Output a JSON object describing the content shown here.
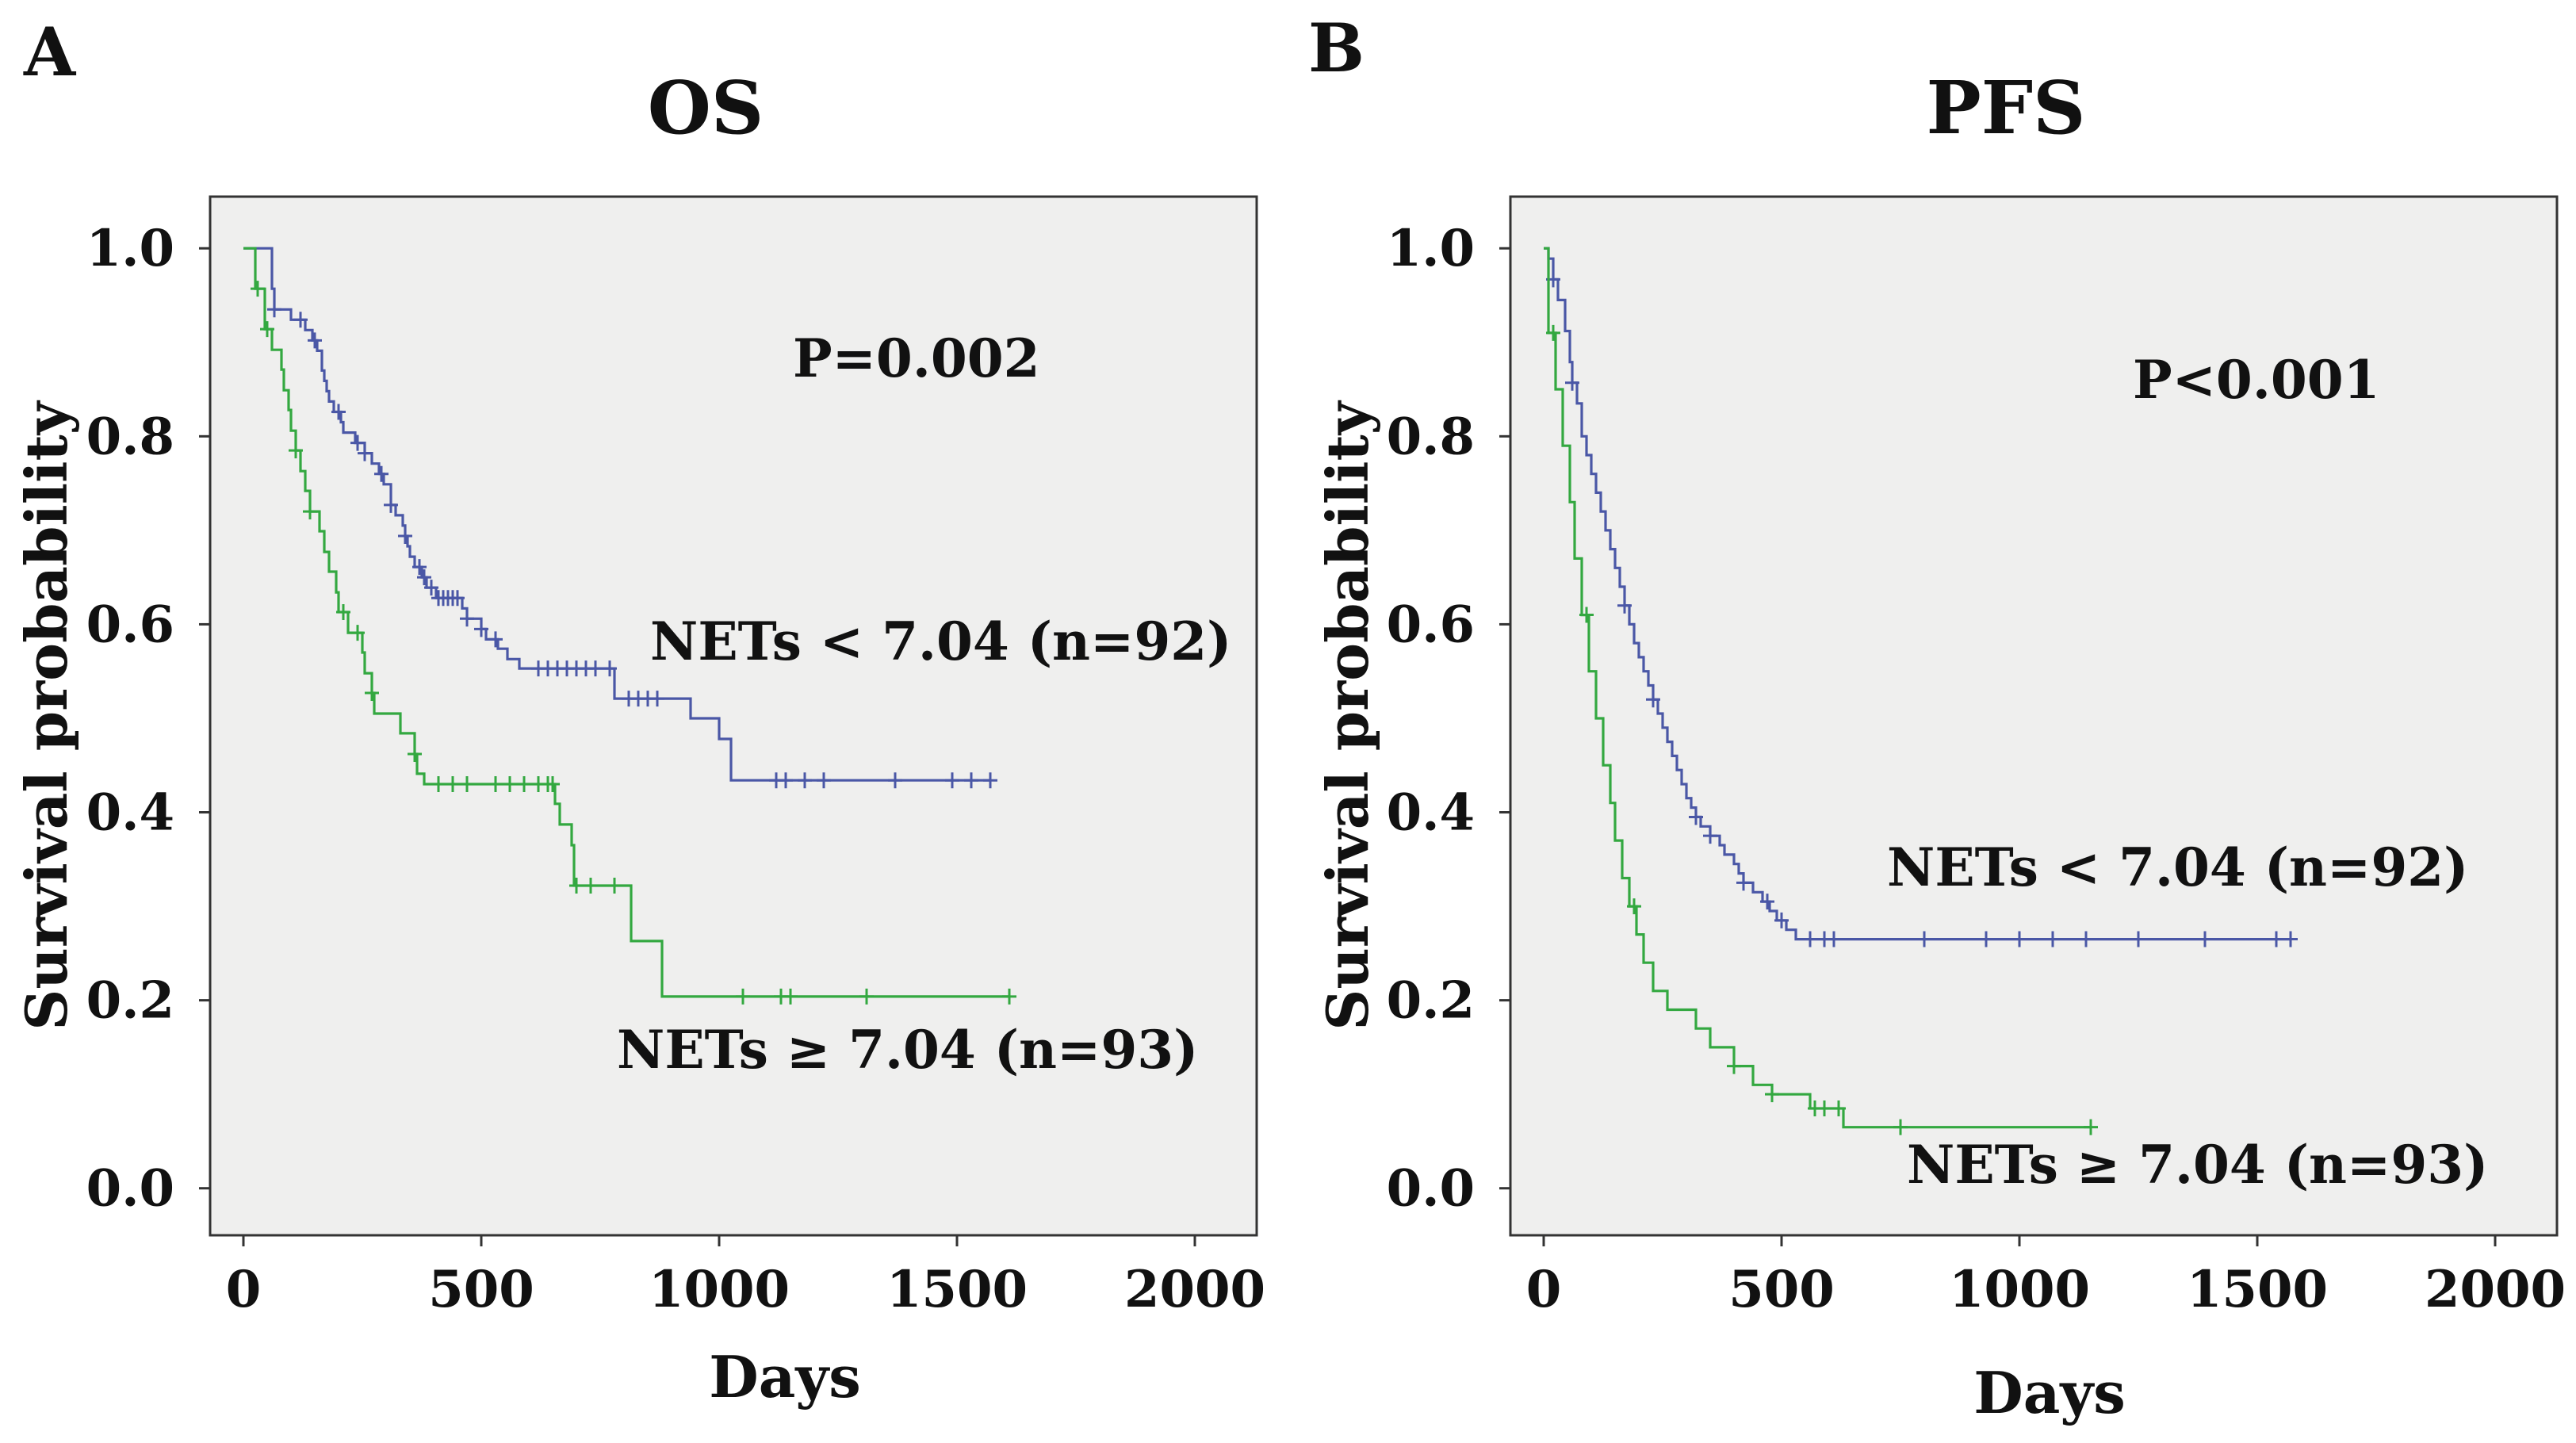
{
  "chart_data": [
    {
      "type": "line",
      "panel_label": "A",
      "title": "OS",
      "xlabel": "Days",
      "ylabel": "Survival probability",
      "xlim": [
        -70,
        2130
      ],
      "ylim": [
        -0.05,
        1.055
      ],
      "xticks": [
        0,
        500,
        1000,
        1500,
        2000
      ],
      "yticks": [
        0.0,
        0.2,
        0.4,
        0.6,
        0.8,
        1.0
      ],
      "annotation": "P=0.002",
      "series": [
        {
          "name": "NETs < 7.04 (n=92)",
          "color": "#4a57a6",
          "steps": [
            [
              0,
              1.0
            ],
            [
              55,
              1.0
            ],
            [
              60,
              0.957
            ],
            [
              65,
              0.935
            ],
            [
              100,
              0.924
            ],
            [
              130,
              0.913
            ],
            [
              145,
              0.902
            ],
            [
              155,
              0.891
            ],
            [
              165,
              0.87
            ],
            [
              170,
              0.859
            ],
            [
              175,
              0.848
            ],
            [
              180,
              0.837
            ],
            [
              190,
              0.826
            ],
            [
              205,
              0.815
            ],
            [
              210,
              0.804
            ],
            [
              235,
              0.793
            ],
            [
              255,
              0.782
            ],
            [
              270,
              0.771
            ],
            [
              285,
              0.76
            ],
            [
              295,
              0.749
            ],
            [
              310,
              0.727
            ],
            [
              320,
              0.716
            ],
            [
              335,
              0.705
            ],
            [
              340,
              0.694
            ],
            [
              345,
              0.683
            ],
            [
              350,
              0.672
            ],
            [
              360,
              0.661
            ],
            [
              375,
              0.65
            ],
            [
              385,
              0.639
            ],
            [
              405,
              0.628
            ],
            [
              460,
              0.617
            ],
            [
              470,
              0.606
            ],
            [
              500,
              0.595
            ],
            [
              510,
              0.584
            ],
            [
              535,
              0.574
            ],
            [
              555,
              0.563
            ],
            [
              580,
              0.553
            ],
            [
              780,
              0.521
            ],
            [
              940,
              0.5
            ],
            [
              1000,
              0.478
            ],
            [
              1025,
              0.434
            ]
          ],
          "end_x": 1570,
          "censor_x": [
            65,
            120,
            150,
            200,
            240,
            255,
            290,
            310,
            340,
            370,
            380,
            395,
            410,
            420,
            430,
            440,
            450,
            470,
            500,
            530,
            620,
            640,
            660,
            680,
            700,
            720,
            740,
            770,
            810,
            830,
            850,
            870,
            1120,
            1140,
            1180,
            1220,
            1370,
            1490,
            1530,
            1570
          ]
        },
        {
          "name": "NETs ≥ 7.04 (n=93)",
          "color": "#33a840",
          "steps": [
            [
              0,
              1.0
            ],
            [
              25,
              0.957
            ],
            [
              45,
              0.914
            ],
            [
              60,
              0.892
            ],
            [
              80,
              0.871
            ],
            [
              85,
              0.849
            ],
            [
              95,
              0.828
            ],
            [
              100,
              0.806
            ],
            [
              110,
              0.785
            ],
            [
              120,
              0.763
            ],
            [
              130,
              0.742
            ],
            [
              140,
              0.72
            ],
            [
              160,
              0.699
            ],
            [
              170,
              0.677
            ],
            [
              180,
              0.656
            ],
            [
              195,
              0.634
            ],
            [
              200,
              0.613
            ],
            [
              220,
              0.591
            ],
            [
              250,
              0.57
            ],
            [
              255,
              0.548
            ],
            [
              270,
              0.527
            ],
            [
              275,
              0.505
            ],
            [
              330,
              0.484
            ],
            [
              360,
              0.462
            ],
            [
              365,
              0.441
            ],
            [
              380,
              0.43
            ],
            [
              655,
              0.409
            ],
            [
              665,
              0.387
            ],
            [
              690,
              0.365
            ],
            [
              695,
              0.322
            ],
            [
              815,
              0.263
            ],
            [
              880,
              0.204
            ]
          ],
          "end_x": 1610,
          "censor_x": [
            30,
            50,
            110,
            140,
            210,
            240,
            270,
            360,
            410,
            440,
            470,
            530,
            560,
            590,
            620,
            640,
            650,
            700,
            730,
            780,
            1050,
            1130,
            1150,
            1310,
            1610
          ]
        }
      ],
      "series_labels": [
        "NETs < 7.04 (n=92)",
        "NETs ≥ 7.04 (n=93)"
      ]
    },
    {
      "type": "line",
      "panel_label": "B",
      "title": "PFS",
      "xlabel": "Days",
      "ylabel": "Survival probability",
      "xlim": [
        -70,
        2130
      ],
      "ylim": [
        -0.05,
        1.055
      ],
      "xticks": [
        0,
        500,
        1000,
        1500,
        2000
      ],
      "yticks": [
        0.0,
        0.2,
        0.4,
        0.6,
        0.8,
        1.0
      ],
      "annotation": "P<0.001",
      "series": [
        {
          "name": "NETs < 7.04 (n=92)",
          "color": "#4a57a6",
          "steps": [
            [
              0,
              1.0
            ],
            [
              10,
              0.989
            ],
            [
              20,
              0.967
            ],
            [
              30,
              0.945
            ],
            [
              45,
              0.912
            ],
            [
              55,
              0.879
            ],
            [
              60,
              0.857
            ],
            [
              70,
              0.835
            ],
            [
              80,
              0.8
            ],
            [
              90,
              0.78
            ],
            [
              100,
              0.76
            ],
            [
              110,
              0.74
            ],
            [
              120,
              0.72
            ],
            [
              130,
              0.7
            ],
            [
              140,
              0.68
            ],
            [
              150,
              0.66
            ],
            [
              160,
              0.64
            ],
            [
              170,
              0.62
            ],
            [
              180,
              0.6
            ],
            [
              190,
              0.58
            ],
            [
              200,
              0.565
            ],
            [
              210,
              0.55
            ],
            [
              220,
              0.535
            ],
            [
              230,
              0.52
            ],
            [
              240,
              0.505
            ],
            [
              250,
              0.49
            ],
            [
              260,
              0.475
            ],
            [
              270,
              0.46
            ],
            [
              280,
              0.445
            ],
            [
              290,
              0.43
            ],
            [
              300,
              0.415
            ],
            [
              310,
              0.405
            ],
            [
              320,
              0.395
            ],
            [
              330,
              0.385
            ],
            [
              350,
              0.375
            ],
            [
              370,
              0.365
            ],
            [
              380,
              0.355
            ],
            [
              400,
              0.345
            ],
            [
              410,
              0.335
            ],
            [
              420,
              0.325
            ],
            [
              440,
              0.315
            ],
            [
              460,
              0.305
            ],
            [
              475,
              0.295
            ],
            [
              490,
              0.285
            ],
            [
              510,
              0.275
            ],
            [
              530,
              0.265
            ]
          ],
          "end_x": 1570,
          "censor_x": [
            20,
            60,
            170,
            230,
            320,
            350,
            420,
            470,
            500,
            560,
            590,
            610,
            800,
            930,
            1000,
            1070,
            1140,
            1250,
            1390,
            1540,
            1570
          ]
        },
        {
          "name": "NETs ≥ 7.04 (n=93)",
          "color": "#33a840",
          "steps": [
            [
              0,
              1.0
            ],
            [
              10,
              0.91
            ],
            [
              25,
              0.85
            ],
            [
              40,
              0.79
            ],
            [
              55,
              0.73
            ],
            [
              65,
              0.67
            ],
            [
              80,
              0.61
            ],
            [
              95,
              0.55
            ],
            [
              110,
              0.5
            ],
            [
              125,
              0.45
            ],
            [
              140,
              0.41
            ],
            [
              150,
              0.37
            ],
            [
              165,
              0.33
            ],
            [
              180,
              0.3
            ],
            [
              195,
              0.27
            ],
            [
              210,
              0.24
            ],
            [
              230,
              0.21
            ],
            [
              260,
              0.19
            ],
            [
              320,
              0.17
            ],
            [
              350,
              0.15
            ],
            [
              400,
              0.13
            ],
            [
              440,
              0.11
            ],
            [
              480,
              0.1
            ],
            [
              560,
              0.085
            ],
            [
              630,
              0.065
            ]
          ],
          "end_x": 1150,
          "censor_x": [
            20,
            90,
            190,
            400,
            480,
            570,
            590,
            620,
            750,
            1150
          ]
        }
      ],
      "series_labels": [
        "NETs < 7.04 (n=92)",
        "NETs ≥ 7.04 (n=93)"
      ]
    }
  ]
}
